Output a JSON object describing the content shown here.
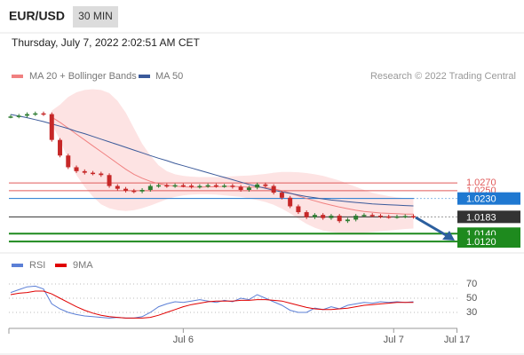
{
  "header": {
    "symbol": "EUR/USD",
    "interval": "30 MIN",
    "date": "Thursday, July 7, 2022 2:02:51 AM CET"
  },
  "chart_data": [
    {
      "type": "candlestick",
      "source": "Research © 2022 Trading Central",
      "x": [
        0,
        1,
        2,
        3,
        4,
        5,
        6,
        7,
        8,
        9,
        10,
        11,
        12,
        13,
        14,
        15,
        16,
        17,
        18,
        19,
        20,
        21,
        22,
        23,
        24,
        25,
        26,
        27,
        28,
        29,
        30,
        31,
        32,
        33,
        34,
        35,
        36,
        37,
        38,
        39,
        40,
        41,
        42,
        43,
        44,
        45,
        46,
        47,
        48,
        49
      ],
      "values": [
        1.044,
        1.0442,
        1.0446,
        1.0448,
        1.0446,
        1.038,
        1.034,
        1.031,
        1.03,
        1.0296,
        1.0294,
        1.029,
        1.0262,
        1.0255,
        1.025,
        1.0248,
        1.0252,
        1.0262,
        1.0264,
        1.0262,
        1.0264,
        1.0263,
        1.026,
        1.0262,
        1.0264,
        1.0262,
        1.0263,
        1.026,
        1.0252,
        1.0258,
        1.0266,
        1.0262,
        1.0245,
        1.0232,
        1.021,
        1.0195,
        1.0182,
        1.0188,
        1.018,
        1.0186,
        1.0172,
        1.0176,
        1.0186,
        1.0188,
        1.0186,
        1.0184,
        1.0183,
        1.0184,
        1.0185,
        1.0183
      ],
      "up_color": "#2e7d32",
      "down_color": "#c62828",
      "xlim": [
        0,
        55
      ],
      "ylim": [
        1.0102,
        1.0511
      ],
      "series": [
        {
          "name": "MA 20 + Bollinger Bands",
          "color": "#f08080",
          "band_color": "#fde3e3",
          "values": [
            null,
            null,
            null,
            null,
            null,
            1.0438,
            1.0425,
            1.041,
            1.0395,
            1.038,
            1.0365,
            1.035,
            1.0335,
            1.032,
            1.0305,
            1.0292,
            1.0282,
            1.0274,
            1.0268,
            1.0264,
            1.0262,
            1.026,
            1.0259,
            1.0259,
            1.026,
            1.026,
            1.0261,
            1.0261,
            1.026,
            1.0259,
            1.0259,
            1.0258,
            1.0255,
            1.025,
            1.0244,
            1.0237,
            1.023,
            1.0224,
            1.0218,
            1.0213,
            1.0208,
            1.0204,
            1.02,
            1.0197,
            1.0195,
            1.0193,
            1.0192,
            1.0191,
            1.019,
            1.019
          ],
          "upper": [
            null,
            null,
            null,
            null,
            null,
            1.0455,
            1.047,
            1.049,
            1.0502,
            1.0508,
            1.051,
            1.0508,
            1.05,
            1.048,
            1.045,
            1.041,
            1.037,
            1.034,
            1.0315,
            1.03,
            1.0292,
            1.0288,
            1.0286,
            1.0285,
            1.0285,
            1.0285,
            1.0286,
            1.0287,
            1.0288,
            1.0289,
            1.0291,
            1.0293,
            1.0296,
            1.0298,
            1.0298,
            1.0297,
            1.0295,
            1.0292,
            1.0288,
            1.0282,
            1.0276,
            1.0268,
            1.026,
            1.0252,
            1.0245,
            1.024,
            1.0236,
            1.0233,
            1.0231,
            1.023
          ],
          "lower": [
            null,
            null,
            null,
            null,
            null,
            1.042,
            1.038,
            1.033,
            1.029,
            1.026,
            1.0235,
            1.0215,
            1.0205,
            1.02,
            1.0198,
            1.02,
            1.0205,
            1.0212,
            1.022,
            1.0228,
            1.0234,
            1.0238,
            1.024,
            1.0241,
            1.0241,
            1.024,
            1.0238,
            1.0236,
            1.0234,
            1.023,
            1.0226,
            1.0221,
            1.0214,
            1.0204,
            1.0192,
            1.0178,
            1.0165,
            1.0155,
            1.0148,
            1.0144,
            1.0142,
            1.0141,
            1.0141,
            1.0142,
            1.0144,
            1.0146,
            1.0148,
            1.015,
            1.0152,
            1.0153
          ]
        },
        {
          "name": "MA 50",
          "color": "#3b5a9a",
          "values": [
            1.0445,
            1.0441,
            1.0437,
            1.0432,
            1.0427,
            1.0421,
            1.0415,
            1.0409,
            1.0402,
            1.0396,
            1.0389,
            1.0382,
            1.0375,
            1.0368,
            1.0361,
            1.0354,
            1.0347,
            1.034,
            1.0333,
            1.0327,
            1.032,
            1.0314,
            1.0308,
            1.0302,
            1.0296,
            1.029,
            1.0284,
            1.0278,
            1.0272,
            1.0266,
            1.0261,
            1.0256,
            1.0251,
            1.0247,
            1.0243,
            1.0239,
            1.0235,
            1.0232,
            1.0229,
            1.0226,
            1.0224,
            1.0222,
            1.022,
            1.0218,
            1.0216,
            1.0215,
            1.0214,
            1.0213,
            1.0212,
            1.0211
          ]
        }
      ],
      "levels": [
        {
          "value": 1.027,
          "label": "1.0270",
          "color": "#e05a5a",
          "style": "text",
          "extend": "solid"
        },
        {
          "value": 1.025,
          "label": "1.0250",
          "color": "#e05a5a",
          "style": "text",
          "extend": "solid"
        },
        {
          "value": 1.023,
          "label": "1.0230",
          "color": "#1f78d1",
          "style": "box",
          "extend": "dotted"
        },
        {
          "value": 1.0183,
          "color": "#333333",
          "style": "box",
          "extend": "dotted"
        },
        {
          "value": 1.014,
          "label": "1.0140",
          "color": "#1e8a1e",
          "style": "box",
          "extend": "solid"
        },
        {
          "value": 1.012,
          "label": "1.0120",
          "color": "#1e8a1e",
          "style": "box",
          "extend": "solid"
        }
      ]
    },
    {
      "type": "line",
      "x": [
        0,
        1,
        2,
        3,
        4,
        5,
        6,
        7,
        8,
        9,
        10,
        11,
        12,
        13,
        14,
        15,
        16,
        17,
        18,
        19,
        20,
        21,
        22,
        23,
        24,
        25,
        26,
        27,
        28,
        29,
        30,
        31,
        32,
        33,
        34,
        35,
        36,
        37,
        38,
        39,
        40,
        41,
        42,
        43,
        44,
        45,
        46,
        47,
        48,
        49
      ],
      "xlim": [
        0,
        55
      ],
      "ylim": [
        7.5,
        100
      ],
      "yticks": [
        30,
        50,
        70
      ],
      "grid": true,
      "xticks": [
        {
          "value": 21,
          "label": "Jul 6"
        },
        {
          "value": 46.6,
          "label": "Jul 7"
        },
        {
          "value": 54.3,
          "label": "Jul 17"
        }
      ],
      "series": [
        {
          "name": "RSI",
          "color": "#5b7fd6",
          "values": [
            58,
            62,
            66,
            67,
            63,
            42,
            35,
            30,
            27,
            25,
            24,
            23,
            22,
            23,
            22,
            22,
            24,
            30,
            38,
            42,
            45,
            44,
            46,
            48,
            46,
            44,
            47,
            45,
            50,
            48,
            55,
            50,
            45,
            40,
            33,
            30,
            30,
            36,
            34,
            38,
            35,
            40,
            42,
            44,
            43,
            45,
            44,
            45,
            44,
            45
          ]
        },
        {
          "name": "9MA",
          "color": "#e00000",
          "values": [
            55,
            57,
            58,
            60,
            60,
            56,
            50,
            44,
            38,
            33,
            29,
            26,
            24,
            23,
            22,
            22,
            22,
            23,
            26,
            30,
            34,
            38,
            41,
            43,
            45,
            46,
            46,
            46,
            47,
            47,
            48,
            48,
            47,
            46,
            43,
            40,
            37,
            35,
            34,
            34,
            35,
            36,
            38,
            40,
            41,
            42,
            43,
            44,
            44,
            44
          ]
        }
      ]
    }
  ]
}
